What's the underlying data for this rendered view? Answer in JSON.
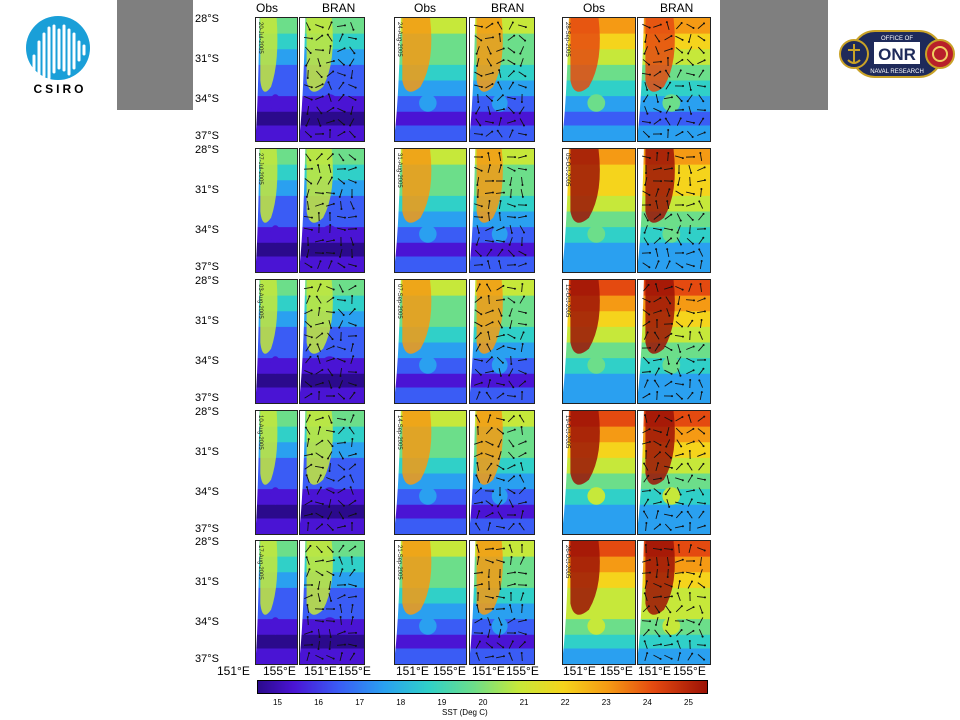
{
  "logos": {
    "left": {
      "name": "CSIRO",
      "text": "CSIRO"
    },
    "right": {
      "name": "Office of Naval Research",
      "text_top": "OFFICE OF",
      "text_mid": "ONR",
      "text_bottom": "NAVAL RESEARCH"
    }
  },
  "figure": {
    "column_headers": [
      "Obs",
      "BRAN",
      "Obs",
      "BRAN",
      "Obs",
      "BRAN"
    ],
    "lat_labels": [
      "28°S",
      "31°S",
      "34°S",
      "37°S"
    ],
    "lon_labels": [
      "151°E",
      "155°E",
      "151°E",
      "155°E",
      "151°E",
      "155°E",
      "151°E",
      "155°E",
      "151°E",
      "155°E",
      "151°E",
      "155°E"
    ],
    "date_labels": [
      [
        "20-Jul-2005",
        "24-Aug-2005",
        "28-Sep-2005"
      ],
      [
        "27-Jul-2005",
        "31-Aug-2005",
        "05-Oct-2005"
      ],
      [
        "03-Aug-2005",
        "07-Sep-2005",
        "12-Oct-2005"
      ],
      [
        "10-Aug-2005",
        "14-Sep-2005",
        "19-Oct-2005"
      ],
      [
        "17-Aug-2005",
        "21-Sep-2005",
        "26-Oct-2005"
      ]
    ],
    "colorbar": {
      "ticks": [
        "15",
        "16",
        "17",
        "18",
        "19",
        "20",
        "21",
        "22",
        "23",
        "24",
        "25"
      ],
      "label": "SST (Deg C)"
    }
  }
}
